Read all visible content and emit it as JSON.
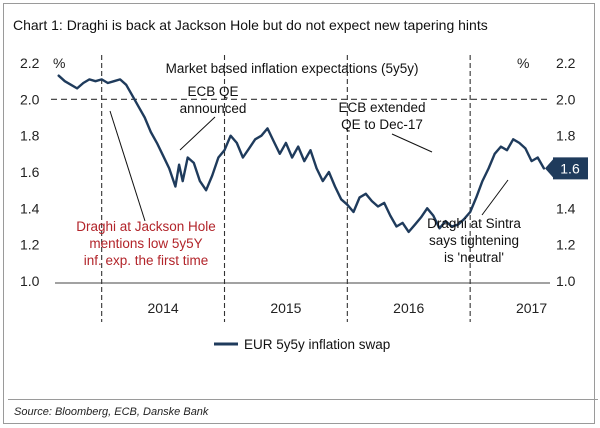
{
  "chart_data": {
    "type": "line",
    "title": "Chart 1: Draghi is back at Jackson Hole but do not expect new tapering hints",
    "subtitle": "Market based inflation expectations (5y5y)",
    "ylabel_left": "%",
    "ylabel_right": "%",
    "ylim": [
      1.0,
      2.2
    ],
    "yticks": [
      1.0,
      1.2,
      1.4,
      1.6,
      1.8,
      2.0,
      2.2
    ],
    "ytick_labels": [
      "1.0",
      "1.2",
      "1.4",
      "1.6",
      "1.8",
      "2.0",
      "2.2"
    ],
    "xlim": [
      2013.62,
      2017.65
    ],
    "xtick_years": [
      2014,
      2015,
      2016,
      2017
    ],
    "xtick_labels": [
      "2014",
      "2015",
      "2016",
      "2017"
    ],
    "year_separators": [
      2014.0,
      2015.0,
      2016.0,
      2017.0
    ],
    "legend": "EUR 5y5y inflation swap",
    "last_value_label": "1.6",
    "series": [
      {
        "name": "EUR 5y5y inflation swap",
        "color": "#1f3b5c",
        "x": [
          2013.65,
          2013.7,
          2013.75,
          2013.8,
          2013.85,
          2013.9,
          2013.95,
          2014.0,
          2014.05,
          2014.1,
          2014.15,
          2014.2,
          2014.25,
          2014.3,
          2014.35,
          2014.4,
          2014.45,
          2014.5,
          2014.55,
          2014.6,
          2014.63,
          2014.66,
          2014.7,
          2014.75,
          2014.8,
          2014.85,
          2014.9,
          2014.95,
          2015.0,
          2015.05,
          2015.1,
          2015.15,
          2015.2,
          2015.25,
          2015.3,
          2015.35,
          2015.4,
          2015.45,
          2015.5,
          2015.55,
          2015.6,
          2015.65,
          2015.7,
          2015.75,
          2015.8,
          2015.85,
          2015.9,
          2015.95,
          2016.0,
          2016.05,
          2016.1,
          2016.15,
          2016.2,
          2016.25,
          2016.3,
          2016.35,
          2016.4,
          2016.45,
          2016.5,
          2016.55,
          2016.6,
          2016.65,
          2016.7,
          2016.75,
          2016.8,
          2016.85,
          2016.9,
          2016.95,
          2017.0,
          2017.05,
          2017.1,
          2017.15,
          2017.2,
          2017.25,
          2017.3,
          2017.35,
          2017.4,
          2017.45,
          2017.5,
          2017.55,
          2017.6
        ],
        "values": [
          2.13,
          2.1,
          2.08,
          2.06,
          2.09,
          2.11,
          2.1,
          2.11,
          2.09,
          2.1,
          2.11,
          2.08,
          2.02,
          1.96,
          1.9,
          1.82,
          1.76,
          1.69,
          1.62,
          1.52,
          1.64,
          1.55,
          1.68,
          1.65,
          1.55,
          1.5,
          1.58,
          1.68,
          1.72,
          1.8,
          1.76,
          1.68,
          1.73,
          1.78,
          1.8,
          1.84,
          1.77,
          1.7,
          1.76,
          1.68,
          1.74,
          1.66,
          1.72,
          1.62,
          1.55,
          1.6,
          1.52,
          1.45,
          1.42,
          1.38,
          1.46,
          1.48,
          1.44,
          1.41,
          1.43,
          1.36,
          1.3,
          1.32,
          1.27,
          1.31,
          1.35,
          1.4,
          1.36,
          1.29,
          1.33,
          1.3,
          1.31,
          1.34,
          1.38,
          1.46,
          1.55,
          1.62,
          1.7,
          1.74,
          1.72,
          1.78,
          1.76,
          1.73,
          1.66,
          1.68,
          1.62
        ]
      }
    ],
    "annotations": [
      {
        "text": [
          "ECB QE",
          "announced"
        ]
      },
      {
        "text": [
          "ECB extended",
          "QE to Dec-17"
        ]
      },
      {
        "text": [
          "Draghi at Jackson Hole",
          "mentions low 5y5Y",
          "inf. exp. the first time"
        ]
      },
      {
        "text": [
          "Draghi at Sintra",
          "says tightening",
          "is 'neutral'"
        ]
      }
    ]
  },
  "source": "Source: Bloomberg, ECB, Danske Bank"
}
